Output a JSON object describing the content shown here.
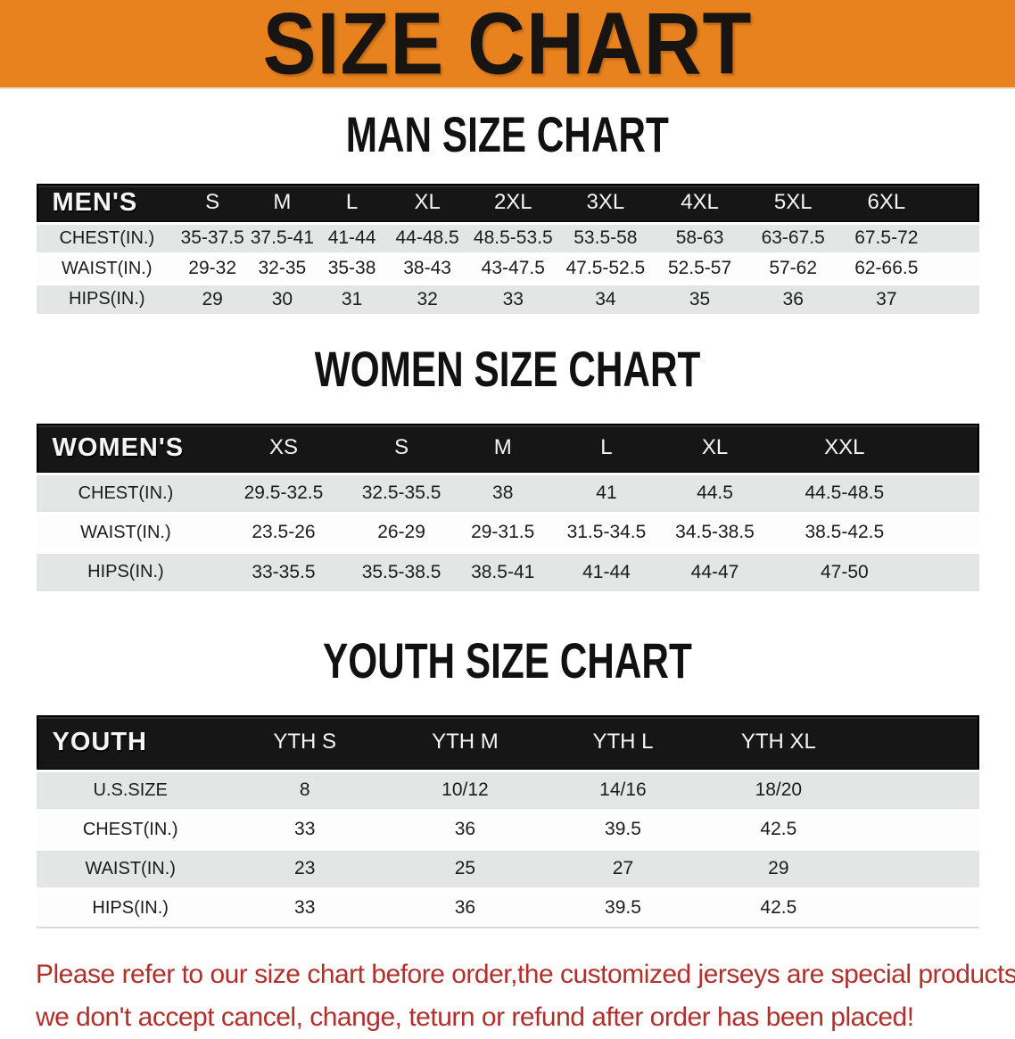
{
  "banner": {
    "title": "SIZE CHART"
  },
  "sections": [
    {
      "heading": "MAN SIZE CHART",
      "table": {
        "label": "MEN'S",
        "columns": [
          "S",
          "M",
          "L",
          "XL",
          "2XL",
          "3XL",
          "4XL",
          "5XL",
          "6XL"
        ],
        "rows": [
          {
            "label": "CHEST(IN.)",
            "values": [
              "35-37.5",
              "37.5-41",
              "41-44",
              "44-48.5",
              "48.5-53.5",
              "53.5-58",
              "58-63",
              "63-67.5",
              "67.5-72"
            ]
          },
          {
            "label": "WAIST(IN.)",
            "values": [
              "29-32",
              "32-35",
              "35-38",
              "38-43",
              "43-47.5",
              "47.5-52.5",
              "52.5-57",
              "57-62",
              "62-66.5"
            ]
          },
          {
            "label": "HIPS(IN.)",
            "values": [
              "29",
              "30",
              "31",
              "32",
              "33",
              "34",
              "35",
              "36",
              "37"
            ]
          }
        ]
      }
    },
    {
      "heading": "WOMEN SIZE CHART",
      "table": {
        "label": "WOMEN'S",
        "columns": [
          "XS",
          "S",
          "M",
          "L",
          "XL",
          "XXL"
        ],
        "rows": [
          {
            "label": "CHEST(IN.)",
            "values": [
              "29.5-32.5",
              "32.5-35.5",
              "38",
              "41",
              "44.5",
              "44.5-48.5"
            ]
          },
          {
            "label": "WAIST(IN.)",
            "values": [
              "23.5-26",
              "26-29",
              "29-31.5",
              "31.5-34.5",
              "34.5-38.5",
              "38.5-42.5"
            ]
          },
          {
            "label": "HIPS(IN.)",
            "values": [
              "33-35.5",
              "35.5-38.5",
              "38.5-41",
              "41-44",
              "44-47",
              "47-50"
            ]
          }
        ]
      }
    },
    {
      "heading": "YOUTH SIZE CHART",
      "table": {
        "label": "YOUTH",
        "columns": [
          "YTH S",
          "YTH M",
          "YTH L",
          "YTH XL"
        ],
        "rows": [
          {
            "label": "U.S.SIZE",
            "values": [
              "8",
              "10/12",
              "14/16",
              "18/20"
            ]
          },
          {
            "label": "CHEST(IN.)",
            "values": [
              "33",
              "36",
              "39.5",
              "42.5"
            ]
          },
          {
            "label": "WAIST(IN.)",
            "values": [
              "23",
              "25",
              "27",
              "29"
            ]
          },
          {
            "label": "HIPS(IN.)",
            "values": [
              "33",
              "36",
              "39.5",
              "42.5"
            ]
          }
        ]
      }
    }
  ],
  "footer": {
    "lines": [
      "Please refer to our size chart before order,the customized jerseys are special products,",
      "we don't accept cancel, change, teturn or refund after order has been placed!"
    ]
  },
  "colors": {
    "banner_bg": "#e8821e",
    "header_bar": "#161616",
    "stripe": "#e4e5e5",
    "footer_text": "#b2302b"
  }
}
